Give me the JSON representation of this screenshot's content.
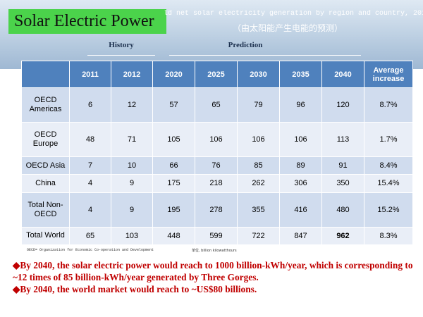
{
  "slide": {
    "title": "Solar Electric Power",
    "subtitle_en": "ld net solar electricity generation by region and country, 2011 -",
    "subtitle_zh": "（由太阳能产生电能的预测）"
  },
  "header_groups": {
    "history": "History",
    "prediction": "Prediction"
  },
  "table": {
    "columns": [
      "",
      "2011",
      "2012",
      "2020",
      "2025",
      "2030",
      "2035",
      "2040",
      "Average increase"
    ],
    "rows": [
      {
        "region": "OECD Americas",
        "values": [
          "6",
          "12",
          "57",
          "65",
          "79",
          "96",
          "120",
          "8.7%"
        ]
      },
      {
        "region": "OECD Europe",
        "values": [
          "48",
          "71",
          "105",
          "106",
          "106",
          "106",
          "113",
          "1.7%"
        ]
      },
      {
        "region": "OECD Asia",
        "values": [
          "7",
          "10",
          "66",
          "76",
          "85",
          "89",
          "91",
          "8.4%"
        ]
      },
      {
        "region": "China",
        "values": [
          "4",
          "9",
          "175",
          "218",
          "262",
          "306",
          "350",
          "15.4%"
        ]
      },
      {
        "region": "Total Non-OECD",
        "values": [
          "4",
          "9",
          "195",
          "278",
          "355",
          "416",
          "480",
          "15.2%"
        ]
      },
      {
        "region": "Total World",
        "values": [
          "65",
          "103",
          "448",
          "599",
          "722",
          "847",
          "962",
          "8.3%"
        ]
      }
    ],
    "highlight_color": "#ff0000"
  },
  "footnotes": {
    "oecd": "OECD= Organization for Economic Co-operation and Development",
    "unit": "单位, billion kilowatthours"
  },
  "bullets": [
    "By 2040, the solar electric power would reach to 1000 billion-kWh/year, which is corresponding to ~12 times of 85 billion-kWh/year generated by Three Gorges.",
    "By 2040, the world market would reach to ~US$80 billions."
  ],
  "colors": {
    "title_bg": "#4bd34b",
    "header_bg": "#4f81bd",
    "row_odd": "#d0dcee",
    "row_even": "#e9eef7",
    "bullet_text": "#c00000"
  }
}
